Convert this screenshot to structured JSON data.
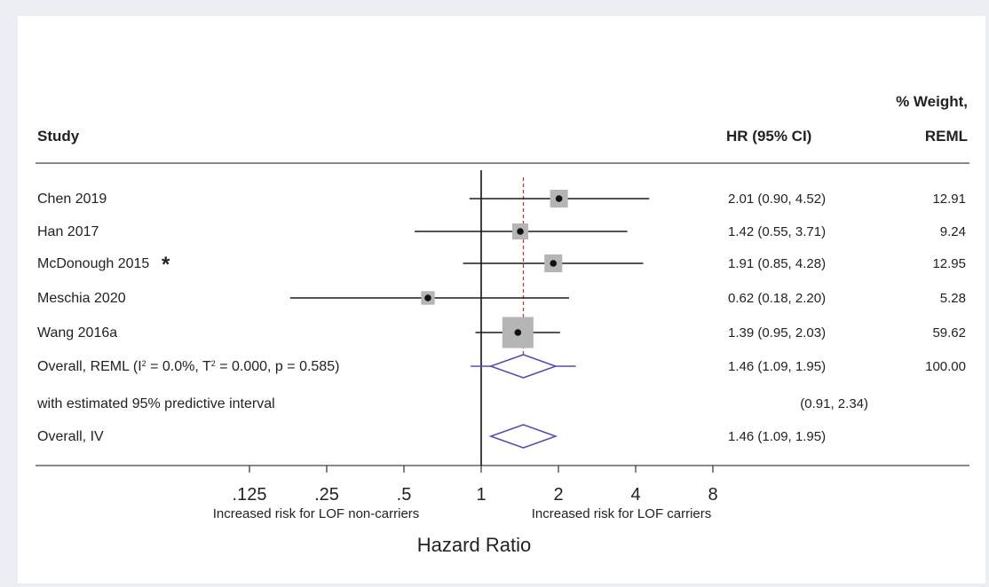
{
  "chart_data": {
    "type": "forest",
    "headers": {
      "study": "Study",
      "hr": "HR (95% CI)",
      "weight_line1": "% Weight,",
      "weight_line2": "REML"
    },
    "studies": [
      {
        "name": "Chen 2019",
        "marker": "",
        "hr": 2.01,
        "lo": 0.9,
        "hi": 4.52,
        "hr_text": "2.01 (0.90, 4.52)",
        "weight": 12.91,
        "weight_text": "12.91"
      },
      {
        "name": "Han 2017",
        "marker": "",
        "hr": 1.42,
        "lo": 0.55,
        "hi": 3.71,
        "hr_text": "1.42 (0.55, 3.71)",
        "weight": 9.24,
        "weight_text": "9.24"
      },
      {
        "name": "McDonough 2015",
        "marker": "*",
        "hr": 1.91,
        "lo": 0.85,
        "hi": 4.28,
        "hr_text": "1.91 (0.85, 4.28)",
        "weight": 12.95,
        "weight_text": "12.95"
      },
      {
        "name": "Meschia 2020",
        "marker": "",
        "hr": 0.62,
        "lo": 0.18,
        "hi": 2.2,
        "hr_text": "0.62 (0.18, 2.20)",
        "weight": 5.28,
        "weight_text": "5.28"
      },
      {
        "name": "Wang 2016a",
        "marker": "",
        "hr": 1.39,
        "lo": 0.95,
        "hi": 2.03,
        "hr_text": "1.39 (0.95, 2.03)",
        "weight": 59.62,
        "weight_text": "59.62"
      }
    ],
    "overall_reml": {
      "label_parts": [
        "Overall, REML (I",
        "2",
        " = 0.0%, T",
        "2",
        " = 0.000, p = 0.585)"
      ],
      "hr": 1.46,
      "lo": 1.09,
      "hi": 1.95,
      "pi_lo": 0.91,
      "pi_hi": 2.34,
      "hr_text": "1.46 (1.09, 1.95)",
      "weight_text": "100.00"
    },
    "predictive_interval": {
      "label": "with estimated 95% predictive interval",
      "text": "(0.91, 2.34)"
    },
    "overall_iv": {
      "label": "Overall, IV",
      "hr": 1.46,
      "lo": 1.09,
      "hi": 1.95,
      "hr_text": "1.46 (1.09, 1.95)"
    },
    "x_axis": {
      "scale": "log",
      "ticks": [
        0.125,
        0.25,
        0.5,
        1,
        2,
        4,
        8
      ],
      "tick_labels": [
        ".125",
        ".25",
        ".5",
        "1",
        "2",
        "4",
        "8"
      ],
      "title": "Hazard Ratio",
      "left_note": "Increased risk for LOF non-carriers",
      "right_note": "Increased risk for LOF carriers",
      "null_line": 1,
      "ref_line": 1.46
    },
    "colors": {
      "text": "#222222",
      "ci_line": "#1a1a1a",
      "weight_box": "#b5b5b5",
      "diamond": "#5a4fb0",
      "ref_line": "#c0392b"
    }
  }
}
